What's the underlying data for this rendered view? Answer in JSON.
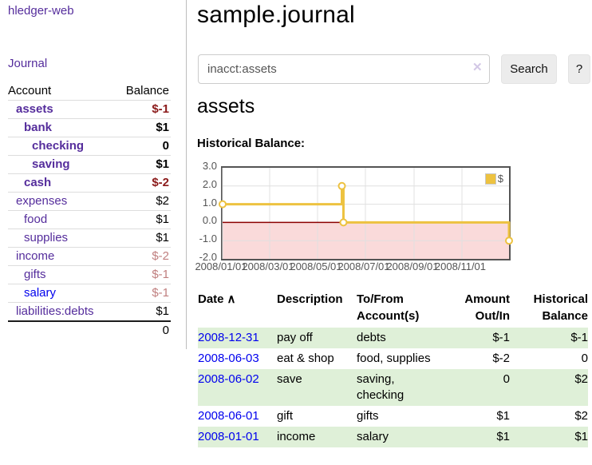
{
  "sidebar": {
    "app_title": "hledger-web",
    "journal_link": "Journal",
    "accounts_table": {
      "col_account": "Account",
      "col_balance": "Balance",
      "rows": [
        {
          "name": "assets",
          "indent": 1,
          "bold": true,
          "balance": "$-1",
          "balance_class": "neg-bold"
        },
        {
          "name": "bank",
          "indent": 2,
          "bold": true,
          "balance": "$1",
          "balance_class": ""
        },
        {
          "name": "checking",
          "indent": 3,
          "bold": true,
          "balance": "0",
          "balance_class": ""
        },
        {
          "name": "saving",
          "indent": 3,
          "bold": true,
          "balance": "$1",
          "balance_class": ""
        },
        {
          "name": "cash",
          "indent": 2,
          "bold": true,
          "balance": "$-2",
          "balance_class": "neg-bold"
        },
        {
          "name": "expenses",
          "indent": 1,
          "bold": false,
          "balance": "$2",
          "balance_class": ""
        },
        {
          "name": "food",
          "indent": 2,
          "bold": false,
          "balance": "$1",
          "balance_class": ""
        },
        {
          "name": "supplies",
          "indent": 2,
          "bold": false,
          "balance": "$1",
          "balance_class": ""
        },
        {
          "name": "income",
          "indent": 1,
          "bold": false,
          "balance": "$-2",
          "balance_class": "neg-light"
        },
        {
          "name": "gifts",
          "indent": 2,
          "bold": false,
          "balance": "$-1",
          "balance_class": "neg-light"
        },
        {
          "name": "salary",
          "indent": 2,
          "bold": false,
          "link_style": "blue",
          "balance": "$-1",
          "balance_class": "neg-light"
        },
        {
          "name": "liabilities:debts",
          "indent": 1,
          "bold": false,
          "balance": "$1",
          "balance_class": ""
        }
      ],
      "total": "0"
    }
  },
  "main": {
    "title": "sample.journal",
    "search": {
      "value": "inacct:assets",
      "clear_icon": "✕",
      "button_label": "Search",
      "help_label": "?"
    },
    "account_heading": "assets",
    "chart_label": "Historical Balance:"
  },
  "chart_data": {
    "type": "line",
    "subtype": "step",
    "title": "Historical Balance:",
    "series": [
      {
        "name": "$",
        "color": "#edc240",
        "points": [
          {
            "date": "2008-01-01",
            "value": 1
          },
          {
            "date": "2008-06-01",
            "value": 2
          },
          {
            "date": "2008-06-03",
            "value": 0
          },
          {
            "date": "2008-12-31",
            "value": -1
          }
        ]
      }
    ],
    "x_ticks": [
      "2008/01/01",
      "2008/03/01",
      "2008/05/01",
      "2008/07/01",
      "2008/09/01",
      "2008/11/01"
    ],
    "y_ticks": [
      "3.0",
      "2.0",
      "1.0",
      "0.0",
      "-1.0",
      "-2.0"
    ],
    "ylim": [
      -2,
      3
    ],
    "x_range": [
      "2008-01-01",
      "2008-12-31"
    ],
    "grid": true,
    "legend_position": "top-right",
    "grid_color": "#e0e0e0",
    "negative_region_fill": "#fadada",
    "zero_line_color": "#8b0000"
  },
  "register": {
    "columns": [
      "Date",
      "Description",
      "To/From Account(s)",
      "Amount Out/In",
      "Historical Balance"
    ],
    "sort_icon": "∧",
    "rows": [
      {
        "date": "2008-12-31",
        "description": "pay off",
        "accounts": "debts",
        "amount": "$-1",
        "amount_neg": true,
        "balance": "$-1",
        "balance_neg": true
      },
      {
        "date": "2008-06-03",
        "description": "eat & shop",
        "accounts": "food, supplies",
        "amount": "$-2",
        "amount_neg": true,
        "balance": "0",
        "balance_neg": false
      },
      {
        "date": "2008-06-02",
        "description": "save",
        "accounts": "saving, checking",
        "amount": "0",
        "amount_neg": false,
        "balance": "$2",
        "balance_neg": false
      },
      {
        "date": "2008-06-01",
        "description": "gift",
        "accounts": "gifts",
        "amount": "$1",
        "amount_neg": false,
        "balance": "$2",
        "balance_neg": false
      },
      {
        "date": "2008-01-01",
        "description": "income",
        "accounts": "salary",
        "amount": "$1",
        "amount_neg": false,
        "balance": "$1",
        "balance_neg": false
      }
    ]
  },
  "colors": {
    "link_purple": "#552d9c",
    "link_blue": "#0000ee",
    "negative_dark": "#8b1a1a",
    "negative_light": "#c07f7f",
    "row_stripe_green": "#dff0d8",
    "button_gray": "#ececec",
    "chart_border": "#545454",
    "chart_series_gold": "#edc240"
  }
}
